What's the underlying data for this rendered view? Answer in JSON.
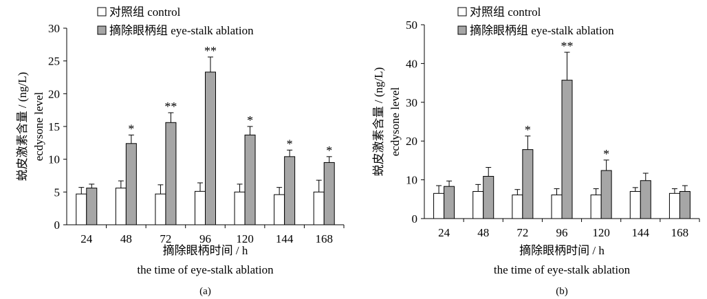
{
  "chart_data": [
    {
      "type": "bar",
      "panel_label": "(a)",
      "categories": [
        "24",
        "48",
        "72",
        "96",
        "120",
        "144",
        "168"
      ],
      "series": [
        {
          "name": "对照组  control",
          "values": [
            4.7,
            5.6,
            4.7,
            5.1,
            5.0,
            4.6,
            5.0
          ],
          "errors": [
            1.0,
            1.1,
            1.4,
            1.3,
            1.2,
            1.1,
            1.8
          ],
          "color": "#ffffff"
        },
        {
          "name": "摘除眼柄组  eye-stalk ablation",
          "values": [
            5.6,
            12.4,
            15.6,
            23.3,
            13.7,
            10.4,
            9.5
          ],
          "errors": [
            0.6,
            1.3,
            1.5,
            2.3,
            1.3,
            1.0,
            0.9
          ],
          "color": "#a6a6a6"
        }
      ],
      "significance": [
        "",
        "*",
        "**",
        "**",
        "*",
        "*",
        "*"
      ],
      "ylim": [
        0,
        30
      ],
      "yticks": [
        0,
        5,
        10,
        15,
        20,
        25,
        30
      ],
      "ylabel_cn": "蜕皮激素含量 / (ng/L)",
      "ylabel_en": "ecdysone level",
      "xlabel_cn": "摘除眼柄时间 / h",
      "xlabel_en": "the time of eye-stalk ablation",
      "legend_position": "top-left"
    },
    {
      "type": "bar",
      "panel_label": "(b)",
      "categories": [
        "24",
        "48",
        "72",
        "96",
        "120",
        "144",
        "168"
      ],
      "series": [
        {
          "name": "对照组  control",
          "values": [
            6.5,
            7.0,
            6.1,
            6.1,
            6.1,
            7.0,
            6.5
          ],
          "errors": [
            2.0,
            1.8,
            1.4,
            1.6,
            1.6,
            1.0,
            1.2
          ],
          "color": "#ffffff"
        },
        {
          "name": "摘除眼柄组  eye-stalk ablation",
          "values": [
            8.3,
            10.9,
            17.8,
            35.7,
            12.4,
            9.8,
            7.0
          ],
          "errors": [
            1.4,
            2.3,
            3.5,
            7.2,
            2.7,
            1.9,
            1.5
          ],
          "color": "#a6a6a6"
        }
      ],
      "significance": [
        "",
        "",
        "*",
        "**",
        "*",
        "",
        ""
      ],
      "ylim": [
        0,
        50
      ],
      "yticks": [
        0,
        10,
        20,
        30,
        40,
        50
      ],
      "ylabel_cn": "蜕皮激素含量 / (ng/L)",
      "ylabel_en": "ecdysone level",
      "xlabel_cn": "摘除眼柄时间 / h",
      "xlabel_en": "the time of eye-stalk ablation",
      "legend_position": "top-left"
    }
  ]
}
